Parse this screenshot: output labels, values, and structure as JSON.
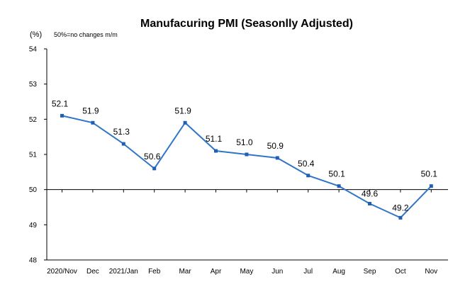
{
  "chart_data": {
    "type": "line",
    "title": "Manufacuring PMI (Seasonlly Adjusted)",
    "unit_label": "(%)",
    "note": "50%=no changes  m/m",
    "categories": [
      "2020/Nov",
      "Dec",
      "2021/Jan",
      "Feb",
      "Mar",
      "Apr",
      "May",
      "Jun",
      "Jul",
      "Aug",
      "Sep",
      "Oct",
      "Nov"
    ],
    "series": [
      {
        "values": [
          52.1,
          51.9,
          51.3,
          50.6,
          51.9,
          51.1,
          51.0,
          50.9,
          50.4,
          50.1,
          49.6,
          49.2,
          50.1
        ],
        "labels": [
          "52.1",
          "51.9",
          "51.3",
          "50.6",
          "51.9",
          "51.1",
          "51.0",
          "50.9",
          "50.4",
          "50.1",
          "49.6",
          "49.2",
          "50.1"
        ]
      }
    ],
    "ylim": [
      48,
      54
    ],
    "yticks": [
      "48",
      "49",
      "50",
      "51",
      "52",
      "53",
      "54"
    ],
    "baseline": 50,
    "grid": false,
    "colors": {
      "line": "#2f75c6",
      "marker": "#1f5fb5",
      "axis": "#000000"
    }
  }
}
